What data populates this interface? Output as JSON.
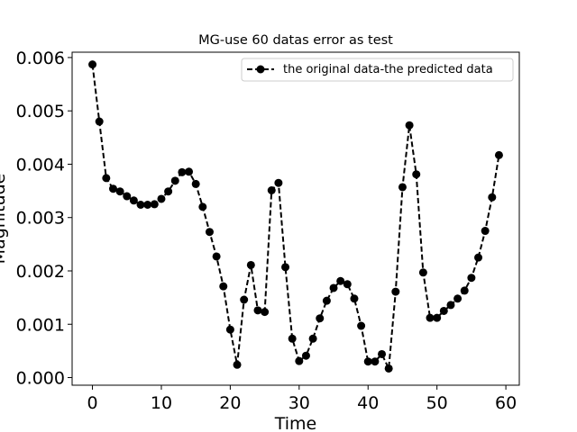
{
  "chart_data": {
    "type": "line",
    "title": "MG-use 60 datas error as test",
    "xlabel": "Time",
    "ylabel": "Magnitude",
    "xlim": [
      -2.95,
      61.95
    ],
    "ylim": [
      -0.000143,
      0.0061
    ],
    "x_ticks": [
      0,
      10,
      20,
      30,
      40,
      50,
      60
    ],
    "x_tick_labels": [
      "0",
      "10",
      "20",
      "30",
      "40",
      "50",
      "60"
    ],
    "y_ticks": [
      0,
      0.001,
      0.002,
      0.003,
      0.004,
      0.005,
      0.006
    ],
    "y_tick_labels": [
      "0.000",
      "0.001",
      "0.002",
      "0.003",
      "0.004",
      "0.005",
      "0.006"
    ],
    "grid": false,
    "legend_position": "top-right",
    "series": [
      {
        "name": "the original data-the predicted data",
        "color": "#000000",
        "line_style": "dashed",
        "marker": "circle",
        "x": [
          0,
          1,
          2,
          3,
          4,
          5,
          6,
          7,
          8,
          9,
          10,
          11,
          12,
          13,
          14,
          15,
          16,
          17,
          18,
          19,
          20,
          21,
          22,
          23,
          24,
          25,
          26,
          27,
          28,
          29,
          30,
          31,
          32,
          33,
          34,
          35,
          36,
          37,
          38,
          39,
          40,
          41,
          42,
          43,
          44,
          45,
          46,
          47,
          48,
          49,
          50,
          51,
          52,
          53,
          54,
          55,
          56,
          57,
          58,
          59
        ],
        "values": [
          0.00587,
          0.0048,
          0.00374,
          0.00354,
          0.00349,
          0.0034,
          0.00332,
          0.00324,
          0.00324,
          0.00325,
          0.00335,
          0.00349,
          0.00369,
          0.00385,
          0.00386,
          0.00363,
          0.0032,
          0.00273,
          0.00227,
          0.00171,
          0.0009,
          0.00024,
          0.00146,
          0.00211,
          0.00126,
          0.00123,
          0.00351,
          0.00365,
          0.00207,
          0.00073,
          0.00031,
          0.00041,
          0.00073,
          0.00111,
          0.00144,
          0.00168,
          0.00181,
          0.00175,
          0.00148,
          0.00097,
          0.0003,
          0.0003,
          0.00044,
          0.00017,
          0.00161,
          0.00357,
          0.00473,
          0.00381,
          0.00197,
          0.00112,
          0.00112,
          0.00125,
          0.00136,
          0.00148,
          0.00163,
          0.00187,
          0.00225,
          0.00275,
          0.00338,
          0.00417
        ]
      }
    ]
  }
}
